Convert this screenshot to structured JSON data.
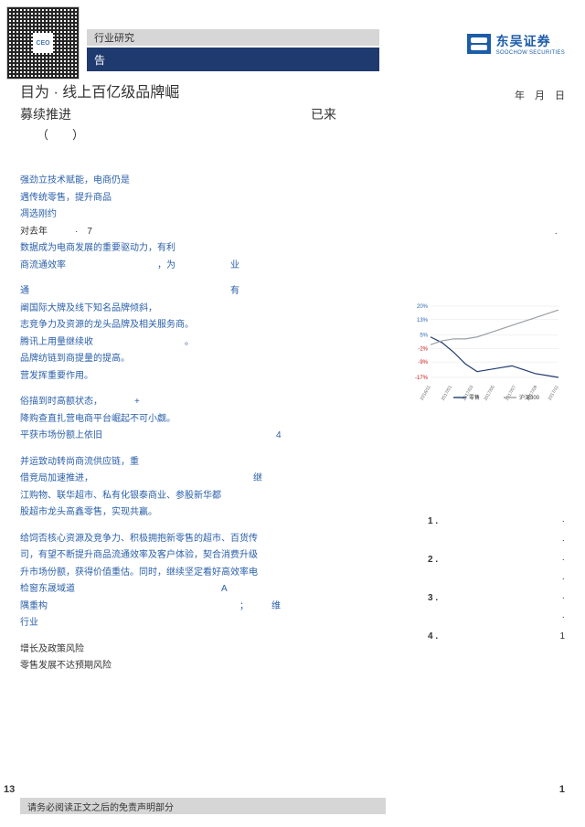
{
  "qr_center": "CEO",
  "header": {
    "bar1": "行业研究",
    "bar2": "告"
  },
  "logo": {
    "cn": "东吴证券",
    "en": "SOOCHOW SECURITIES"
  },
  "title": {
    "line1_a": "目为 · ",
    "line1_b": "线上百亿级品牌崛",
    "line2": "募续推进",
    "already": "已来",
    "paren": "（　　）"
  },
  "date": "　年　月　日",
  "body": {
    "b1": [
      "强劲立技术赋能，电商仍是",
      "遇传统零售，提升商品",
      "凋选刚约",
      "对去年　　　·　7",
      "数据成为电商发展的重要驱动力，有利",
      "商流通效率　　　　　　　　　　，为　　　　　　业"
    ],
    "b2": [
      "通　　　　　　　　　　　　　　　　　　　　　　有",
      "阐国际大牌及线下知名品牌倾斜，",
      "志竞争力及资源的龙头品牌及相关服务商。",
      "腾讯上用量继续收　　　　　　　　　　。",
      "品牌纺链到商提量的提高。",
      "营发挥重要作用。"
    ],
    "b3": [
      "俗描到时高额状态，　　　　+",
      "降购查直扎营电商平台崛起不可小觑。",
      "平获市场份额上依旧　　　　　　　　　　　　　　　　　　　4"
    ],
    "b4": [
      "并运致动转尚商流供应链，重",
      "借竞局加速推进，　　　　　　　　　　　　　　　　　　继",
      "江购物、联华超市、私有化银泰商业、参股新华都",
      "股超市龙头高鑫零售，实现共赢。"
    ],
    "b5": [
      "给饲否核心资源及竞争力、积极拥抱新零售的超市、百货传",
      "司，有望不断提升商品流通效率及客户体验，契合消费升级",
      "升市场份额，获得价值重估。同时，继续坚定看好高效率电",
      "检窗东晟域道　　　　　　　　　　　　　　　　A",
      "隅重构　　　　　　　　　　　　　　　　　　　　　；　　　维",
      "行业"
    ],
    "b6": [
      "增长及政策风险",
      "零售发展不达预期风险"
    ]
  },
  "rhs_item": "·",
  "chart": {
    "y_ticks": [
      "20%",
      "13%",
      "5%",
      "-2%",
      "-9%",
      "-17%"
    ],
    "y_colors": [
      "#2b68b0",
      "#2b68b0",
      "#2b68b0",
      "#c11",
      "#c11",
      "#c11"
    ],
    "x_labels": [
      "2016/11",
      "2017/01",
      "2017/03",
      "2017/05",
      "2017/07",
      "2017/09",
      "2017/11"
    ],
    "series": [
      {
        "name": "零售",
        "color": "#1f3a6e",
        "points": [
          4,
          1,
          -4,
          -10,
          -14,
          -13,
          -12,
          -11,
          -13,
          -15,
          -16,
          -17
        ]
      },
      {
        "name": "沪深300",
        "color": "#9aa0a6",
        "points": [
          0,
          2,
          3,
          3,
          4,
          6,
          8,
          10,
          12,
          14,
          16,
          18
        ]
      }
    ],
    "legend": [
      "零售",
      "沪深300"
    ],
    "legend_colors": [
      "#1f3a6e",
      "#9aa0a6"
    ]
  },
  "toc": [
    {
      "n": "1 .",
      "t": "·"
    },
    {
      "n": "",
      "t": "·"
    },
    {
      "n": "2 .",
      "t": "·"
    },
    {
      "n": "",
      "t": "·"
    },
    {
      "n": "3 .",
      "t": "·"
    },
    {
      "n": "",
      "t": "·"
    },
    {
      "n": "4 .",
      "t": "1"
    }
  ],
  "footer": "请务必阅读正文之后的免责声明部分",
  "page_left": "13",
  "page_right": "1"
}
